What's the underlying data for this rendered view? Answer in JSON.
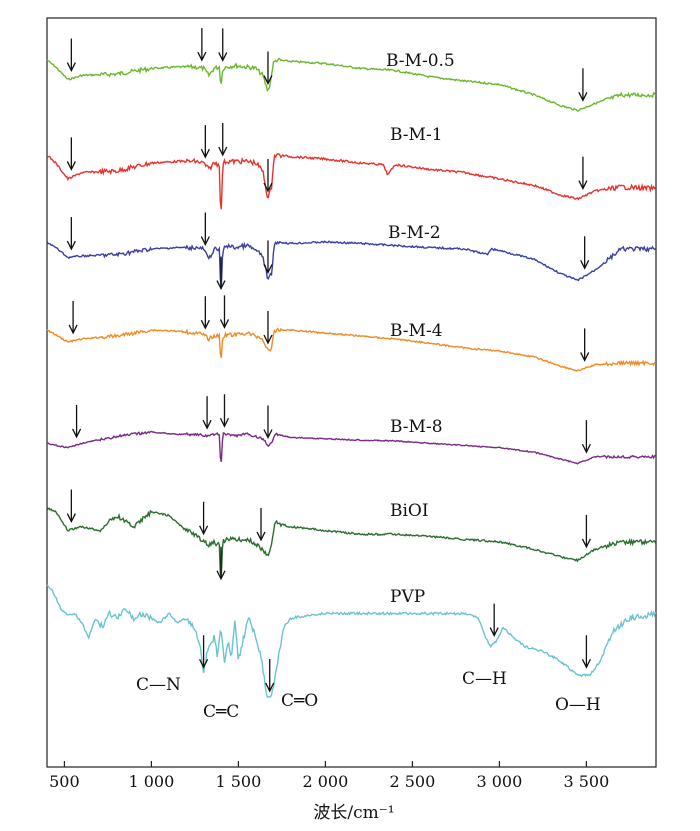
{
  "chart_data": {
    "type": "line",
    "xlabel": "波长/cm⁻¹",
    "xlim": [
      400,
      3900
    ],
    "xticks": [
      500,
      1000,
      1500,
      2000,
      2500,
      3000,
      3500
    ],
    "xtick_labels": [
      "500",
      "1 000",
      "1 500",
      "2 000",
      "2 500",
      "3 000",
      "3 500"
    ],
    "y_axis": "offset-stacked transmittance (no ticks)",
    "grid": false,
    "series": [
      {
        "name": "B-M-0.5",
        "color": "#6ab82e",
        "x": [
          400,
          450,
          520,
          600,
          800,
          1000,
          1150,
          1250,
          1300,
          1330,
          1360,
          1390,
          1400,
          1410,
          1430,
          1480,
          1550,
          1600,
          1640,
          1670,
          1685,
          1700,
          1720,
          1800,
          2000,
          2200,
          2400,
          2600,
          2800,
          3000,
          3200,
          3350,
          3450,
          3550,
          3700,
          3900
        ],
        "y": [
          0.0,
          0.1,
          0.28,
          0.22,
          0.2,
          0.12,
          0.1,
          0.1,
          0.12,
          0.22,
          0.12,
          0.1,
          0.38,
          0.12,
          0.1,
          0.08,
          0.1,
          0.12,
          0.22,
          0.45,
          0.3,
          0.05,
          0.0,
          0.02,
          0.05,
          0.12,
          0.15,
          0.24,
          0.3,
          0.35,
          0.5,
          0.65,
          0.72,
          0.62,
          0.5,
          0.5
        ]
      },
      {
        "name": "B-M-1",
        "color": "#e8322c",
        "x": [
          400,
          450,
          520,
          600,
          800,
          1000,
          1150,
          1250,
          1300,
          1330,
          1360,
          1390,
          1400,
          1410,
          1430,
          1480,
          1550,
          1600,
          1640,
          1670,
          1690,
          1705,
          1720,
          1800,
          2000,
          2200,
          2330,
          2360,
          2400,
          2600,
          2800,
          3000,
          3200,
          3350,
          3450,
          3550,
          3700,
          3900
        ],
        "y": [
          0.0,
          0.1,
          0.3,
          0.22,
          0.2,
          0.1,
          0.08,
          0.08,
          0.1,
          0.18,
          0.1,
          0.12,
          0.85,
          0.1,
          0.08,
          0.08,
          0.08,
          0.1,
          0.2,
          0.55,
          0.4,
          0.02,
          0.0,
          0.02,
          0.05,
          0.1,
          0.12,
          0.25,
          0.12,
          0.18,
          0.22,
          0.3,
          0.38,
          0.5,
          0.55,
          0.45,
          0.4,
          0.42
        ]
      },
      {
        "name": "B-M-2",
        "color": "#3a3fa0",
        "x": [
          400,
          450,
          520,
          600,
          800,
          1000,
          1150,
          1250,
          1300,
          1330,
          1360,
          1390,
          1400,
          1410,
          1430,
          1480,
          1550,
          1600,
          1640,
          1670,
          1690,
          1705,
          1720,
          1800,
          2000,
          2200,
          2400,
          2600,
          2800,
          2930,
          2950,
          3000,
          3200,
          3350,
          3450,
          3550,
          3700,
          3900
        ],
        "y": [
          0.0,
          0.08,
          0.22,
          0.2,
          0.18,
          0.1,
          0.08,
          0.08,
          0.1,
          0.25,
          0.1,
          0.12,
          0.78,
          0.12,
          0.05,
          0.08,
          0.05,
          0.12,
          0.2,
          0.55,
          0.45,
          0.08,
          0.0,
          0.02,
          0.0,
          0.02,
          0.05,
          0.08,
          0.1,
          0.18,
          0.1,
          0.12,
          0.25,
          0.45,
          0.55,
          0.4,
          0.1,
          0.1
        ]
      },
      {
        "name": "B-M-4",
        "color": "#f08a24",
        "x": [
          400,
          450,
          520,
          600,
          800,
          1000,
          1150,
          1250,
          1300,
          1330,
          1360,
          1390,
          1400,
          1410,
          1430,
          1480,
          1550,
          1600,
          1640,
          1670,
          1690,
          1705,
          1720,
          1800,
          2000,
          2200,
          2400,
          2600,
          2800,
          3000,
          3200,
          3350,
          3450,
          3550,
          3700,
          3900
        ],
        "y": [
          0.0,
          0.08,
          0.2,
          0.15,
          0.1,
          0.0,
          0.02,
          0.05,
          0.08,
          0.15,
          0.1,
          0.1,
          0.55,
          0.1,
          0.08,
          0.08,
          0.05,
          0.1,
          0.15,
          0.35,
          0.3,
          0.05,
          0.0,
          0.0,
          0.05,
          0.1,
          0.15,
          0.22,
          0.3,
          0.35,
          0.45,
          0.6,
          0.68,
          0.58,
          0.55,
          0.55
        ]
      },
      {
        "name": "B-M-8",
        "color": "#7a2a86",
        "x": [
          400,
          450,
          520,
          600,
          800,
          1000,
          1150,
          1250,
          1300,
          1330,
          1360,
          1390,
          1400,
          1410,
          1430,
          1480,
          1550,
          1600,
          1640,
          1670,
          1690,
          1705,
          1720,
          1800,
          2000,
          2200,
          2400,
          2600,
          2800,
          3000,
          3200,
          3350,
          3450,
          3550,
          3700,
          3900
        ],
        "y": [
          0.25,
          0.3,
          0.35,
          0.25,
          0.1,
          0.0,
          0.05,
          0.05,
          0.08,
          0.1,
          0.05,
          0.05,
          0.85,
          0.05,
          0.05,
          0.08,
          0.05,
          0.1,
          0.15,
          0.3,
          0.25,
          0.1,
          0.05,
          0.12,
          0.15,
          0.18,
          0.2,
          0.25,
          0.3,
          0.35,
          0.45,
          0.6,
          0.7,
          0.55,
          0.55,
          0.55
        ]
      },
      {
        "name": "BiOI",
        "color": "#2a6e2e",
        "x": [
          400,
          450,
          520,
          600,
          700,
          800,
          900,
          1000,
          1100,
          1200,
          1250,
          1300,
          1330,
          1360,
          1390,
          1400,
          1410,
          1430,
          1480,
          1550,
          1600,
          1640,
          1670,
          1690,
          1705,
          1720,
          1800,
          2000,
          2200,
          2400,
          2600,
          2800,
          3000,
          3200,
          3350,
          3450,
          3550,
          3700,
          3900
        ],
        "y": [
          0.0,
          0.05,
          0.3,
          0.25,
          0.3,
          0.1,
          0.25,
          0.05,
          0.1,
          0.3,
          0.35,
          0.45,
          0.5,
          0.45,
          0.5,
          1.05,
          0.45,
          0.42,
          0.42,
          0.42,
          0.48,
          0.55,
          0.65,
          0.5,
          0.25,
          0.2,
          0.25,
          0.3,
          0.35,
          0.35,
          0.38,
          0.42,
          0.45,
          0.55,
          0.65,
          0.7,
          0.55,
          0.45,
          0.45
        ]
      },
      {
        "name": "PVP",
        "color": "#6cc3cf",
        "x": [
          400,
          430,
          480,
          520,
          560,
          600,
          640,
          680,
          720,
          760,
          800,
          850,
          900,
          950,
          1000,
          1050,
          1100,
          1150,
          1200,
          1250,
          1280,
          1300,
          1320,
          1340,
          1360,
          1380,
          1400,
          1420,
          1440,
          1460,
          1480,
          1500,
          1530,
          1560,
          1600,
          1630,
          1660,
          1680,
          1700,
          1730,
          1760,
          1800,
          1900,
          2000,
          2200,
          2500,
          2800,
          2880,
          2920,
          2950,
          2980,
          3020,
          3080,
          3150,
          3250,
          3350,
          3450,
          3520,
          3580,
          3650,
          3750,
          3900
        ],
        "y": [
          0.0,
          0.05,
          0.25,
          0.32,
          0.3,
          0.4,
          0.55,
          0.35,
          0.45,
          0.3,
          0.35,
          0.25,
          0.35,
          0.3,
          0.35,
          0.4,
          0.3,
          0.4,
          0.35,
          0.45,
          0.65,
          0.95,
          0.7,
          0.65,
          0.55,
          0.75,
          0.45,
          0.85,
          0.6,
          0.75,
          0.4,
          0.8,
          0.55,
          0.35,
          0.55,
          0.75,
          1.15,
          1.2,
          1.1,
          0.75,
          0.45,
          0.35,
          0.32,
          0.3,
          0.3,
          0.3,
          0.3,
          0.35,
          0.55,
          0.65,
          0.6,
          0.45,
          0.55,
          0.65,
          0.7,
          0.8,
          0.95,
          0.95,
          0.8,
          0.5,
          0.35,
          0.3
        ]
      }
    ],
    "series_labels": [
      "B-M-0.5",
      "B-M-1",
      "B-M-2",
      "B-M-4",
      "B-M-8",
      "BiOI",
      "PVP"
    ],
    "annotations": [
      "C—N",
      "C═C",
      "C═O",
      "C—H",
      "O—H"
    ],
    "marker_arrows": {
      "B-M-0.5": [
        540,
        1290,
        1410,
        1670,
        3480
      ],
      "B-M-1": [
        540,
        1310,
        1410,
        1670,
        3480
      ],
      "B-M-2": [
        540,
        1310,
        1400,
        1670,
        3490
      ],
      "B-M-4": [
        550,
        1310,
        1420,
        1670,
        3490
      ],
      "B-M-8": [
        570,
        1320,
        1420,
        1670,
        3500
      ],
      "BiOI": [
        540,
        1300,
        1400,
        1630,
        3500
      ],
      "PVP": [
        1300,
        1680,
        2970,
        3500
      ]
    }
  }
}
